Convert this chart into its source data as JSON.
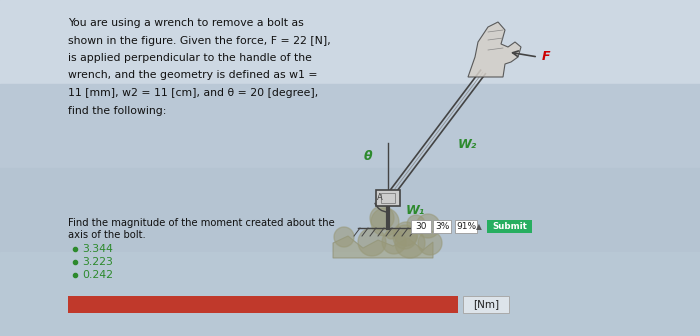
{
  "bg_color_top": "#c8d4e0",
  "bg_color_bottom": "#b8c8d8",
  "bg_color": "#c2cdd8",
  "text_color": "#111111",
  "green_color": "#2d8a2d",
  "red_color": "#c0392b",
  "title_lines": [
    "You are using a wrench to remove a bolt as",
    "shown in the figure. Given the force, F = 22 [N],",
    "is applied perpendicular to the handle of the",
    "wrench, and the geometry is defined as w1 =",
    "11 [mm], w2 = 11 [cm], and θ = 20 [degree],",
    "find the following:"
  ],
  "question_line1": "Find the magnitude of the moment created about the",
  "question_line2": "axis of the bolt.",
  "answers": [
    "3.344",
    "3.223",
    "0.242"
  ],
  "answer_bullet_color": "#2d8a2d",
  "stats_boxes": [
    "30",
    "3%",
    "91%"
  ],
  "submit_btn_color": "#27ae60",
  "submit_btn_text": "Submit",
  "unit_label": "[Nm]",
  "input_bar_color": "#c0392b",
  "label_F": "F",
  "label_theta": "θ",
  "label_w1": "W₁",
  "label_w2": "W₂",
  "sketch_color": "#444444",
  "sketch_light": "#888888"
}
